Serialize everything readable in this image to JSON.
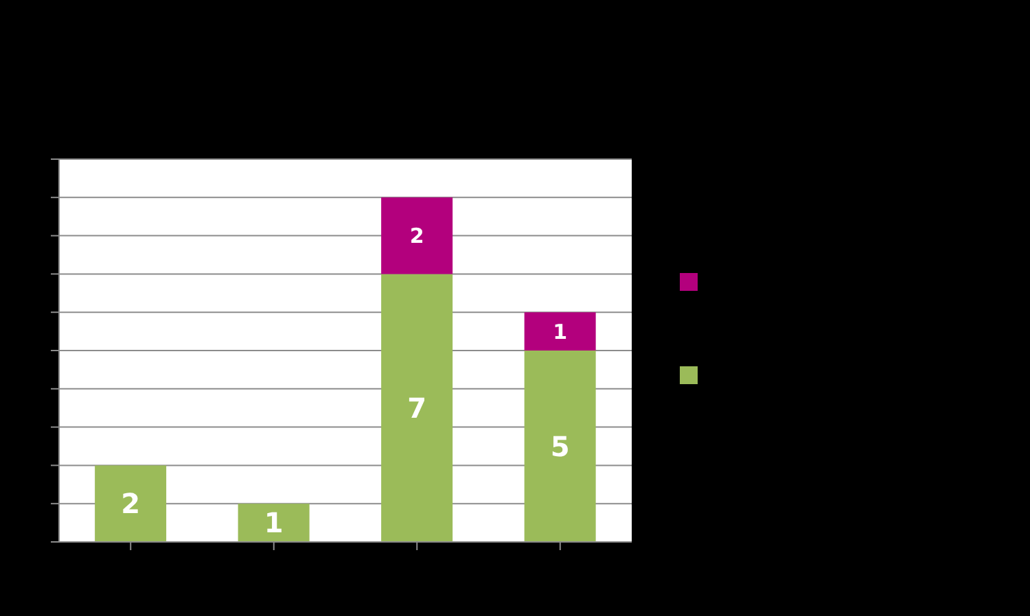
{
  "chart_data": {
    "type": "bar",
    "stacked": true,
    "categories": [
      null,
      null,
      null,
      null
    ],
    "series": [
      {
        "color": "#9bbb59",
        "values": [
          2,
          1,
          7,
          5
        ]
      },
      {
        "color": "#b3007d",
        "values": [
          null,
          null,
          2,
          1
        ]
      }
    ],
    "ylim": [
      0,
      10
    ],
    "yticks": [
      {
        "value": 0,
        "label": null
      },
      {
        "value": 1,
        "label": null
      },
      {
        "value": 2,
        "label": null
      },
      {
        "value": 3,
        "label": null
      },
      {
        "value": 4,
        "label": null
      },
      {
        "value": 5,
        "label": null
      },
      {
        "value": 6,
        "label": null
      },
      {
        "value": 7,
        "label": null
      },
      {
        "value": 8,
        "label": null
      },
      {
        "value": 9,
        "label": null
      },
      {
        "value": 10,
        "label": null
      }
    ],
    "grid": "y",
    "data_labels": true
  }
}
